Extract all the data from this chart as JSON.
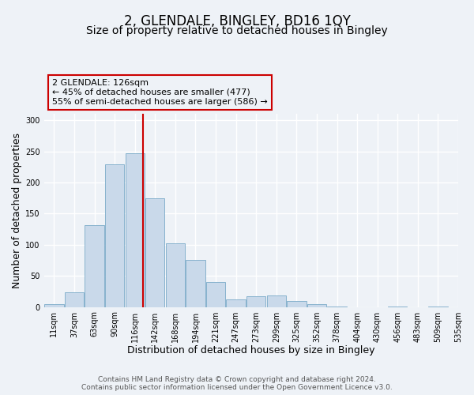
{
  "title": "2, GLENDALE, BINGLEY, BD16 1QY",
  "subtitle": "Size of property relative to detached houses in Bingley",
  "xlabel": "Distribution of detached houses by size in Bingley",
  "ylabel": "Number of detached properties",
  "bar_heights": [
    5,
    23,
    131,
    229,
    247,
    174,
    102,
    76,
    40,
    12,
    17,
    18,
    10,
    4,
    1,
    0,
    0,
    1,
    0,
    1
  ],
  "tick_labels": [
    "11sqm",
    "37sqm",
    "63sqm",
    "90sqm",
    "116sqm",
    "142sqm",
    "168sqm",
    "194sqm",
    "221sqm",
    "247sqm",
    "273sqm",
    "299sqm",
    "325sqm",
    "352sqm",
    "378sqm",
    "404sqm",
    "430sqm",
    "456sqm",
    "483sqm",
    "509sqm",
    "535sqm"
  ],
  "bar_color": "#c9d9ea",
  "bar_edge_color": "#7aaac8",
  "vline_color": "#cc0000",
  "annotation_lines": [
    "2 GLENDALE: 126sqm",
    "← 45% of detached houses are smaller (477)",
    "55% of semi-detached houses are larger (586) →"
  ],
  "ylim": [
    0,
    310
  ],
  "yticks": [
    0,
    50,
    100,
    150,
    200,
    250,
    300
  ],
  "footnote1": "Contains HM Land Registry data © Crown copyright and database right 2024.",
  "footnote2": "Contains public sector information licensed under the Open Government Licence v3.0.",
  "background_color": "#eef2f7",
  "grid_color": "#ffffff",
  "title_fontsize": 12,
  "subtitle_fontsize": 10,
  "axis_label_fontsize": 9,
  "tick_fontsize": 7,
  "annotation_fontsize": 8,
  "footnote_fontsize": 6.5
}
